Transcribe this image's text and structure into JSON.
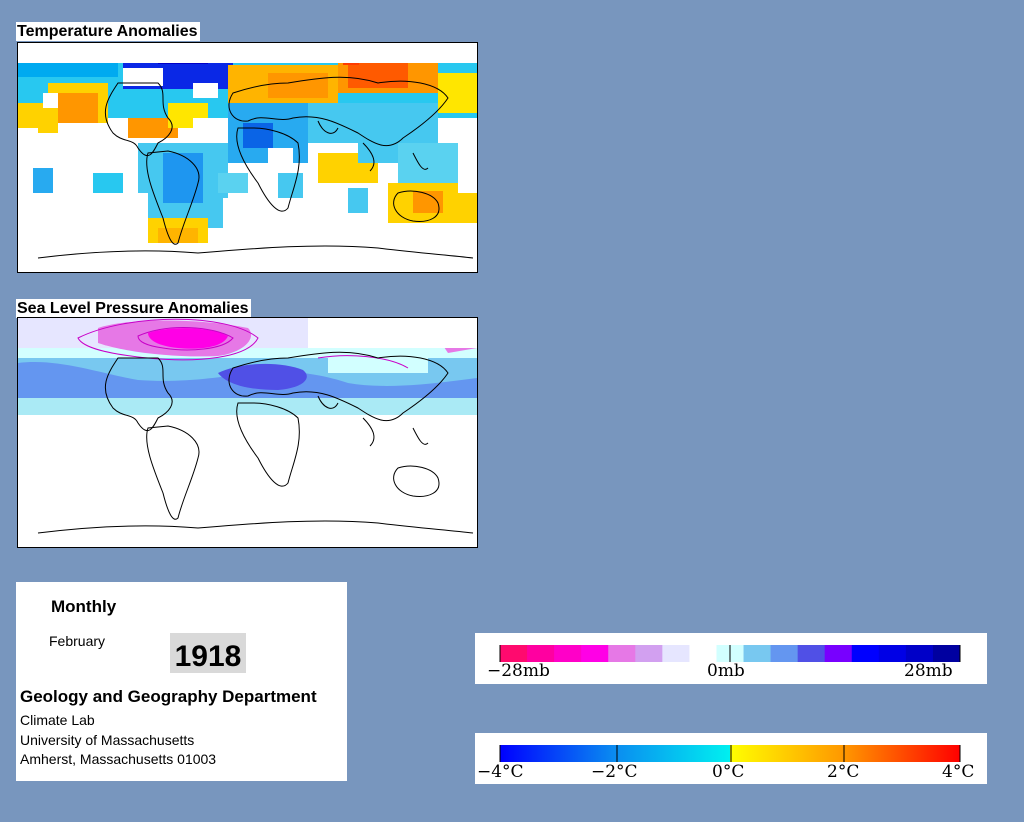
{
  "temperature_map": {
    "title": "Temperature Anomalies"
  },
  "pressure_map": {
    "title": "Sea Level Pressure Anomalies"
  },
  "info": {
    "mode": "Monthly",
    "month": "February",
    "year": "1918",
    "department": "Geology and Geography Department",
    "lab": "Climate Lab",
    "university": "University of Massachusetts",
    "address": "Amherst, Massachusetts 01003"
  },
  "pressure_legend": {
    "colors": [
      "#ff0a6e",
      "#ff00a0",
      "#ff00c8",
      "#ff00e6",
      "#e678e6",
      "#d2a0f0",
      "#e6e6ff",
      "#ffffff",
      "#d2ffff",
      "#78c8f0",
      "#6496f0",
      "#5050e6",
      "#7800ff",
      "#0000ff",
      "#0000e6",
      "#0000c8",
      "#0000a0"
    ],
    "labels": [
      "−28mb",
      "0mb",
      "28mb"
    ]
  },
  "temperature_legend": {
    "colors": [
      "#0000ff",
      "#0a50f0",
      "#0a8cf0",
      "#00bef0",
      "#00f0f0",
      "#ffff00",
      "#ffc800",
      "#ff9600",
      "#ff6400",
      "#ff0000"
    ],
    "labels": [
      "−4°C",
      "−2°C",
      "0°C",
      "2°C",
      "4°C"
    ]
  }
}
